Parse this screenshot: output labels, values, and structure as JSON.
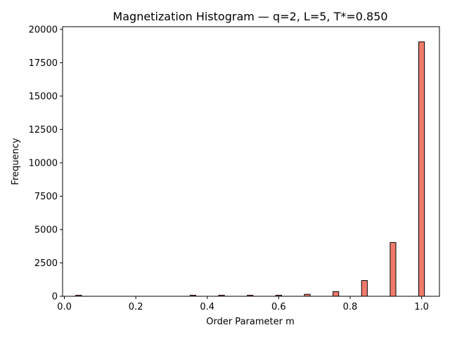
{
  "chart_data": {
    "type": "bar",
    "title": "Magnetization Histogram — q=2, L=5, T*=0.850",
    "xlabel": "Order Parameter m",
    "ylabel": "Frequency",
    "xlim": [
      -0.005,
      1.05
    ],
    "ylim": [
      0,
      20200
    ],
    "xticks": [
      0.0,
      0.2,
      0.4,
      0.6,
      0.8,
      1.0
    ],
    "xtick_labels": [
      "0.0",
      "0.2",
      "0.4",
      "0.6",
      "0.8",
      "1.0"
    ],
    "yticks": [
      0,
      2500,
      5000,
      7500,
      10000,
      12500,
      15000,
      17500,
      20000
    ],
    "ytick_labels": [
      "0",
      "2500",
      "5000",
      "7500",
      "10000",
      "12500",
      "15000",
      "17500",
      "20000"
    ],
    "bin_width": 0.016,
    "bar_color": "#f07b6b",
    "edge_color": "#000000",
    "bins": [
      {
        "m": 0.04,
        "count": 3
      },
      {
        "m": 0.36,
        "count": 30
      },
      {
        "m": 0.44,
        "count": 40
      },
      {
        "m": 0.52,
        "count": 40
      },
      {
        "m": 0.6,
        "count": 80
      },
      {
        "m": 0.68,
        "count": 150
      },
      {
        "m": 0.76,
        "count": 350
      },
      {
        "m": 0.84,
        "count": 1180
      },
      {
        "m": 0.92,
        "count": 4030
      },
      {
        "m": 1.0,
        "count": 19060
      }
    ]
  }
}
